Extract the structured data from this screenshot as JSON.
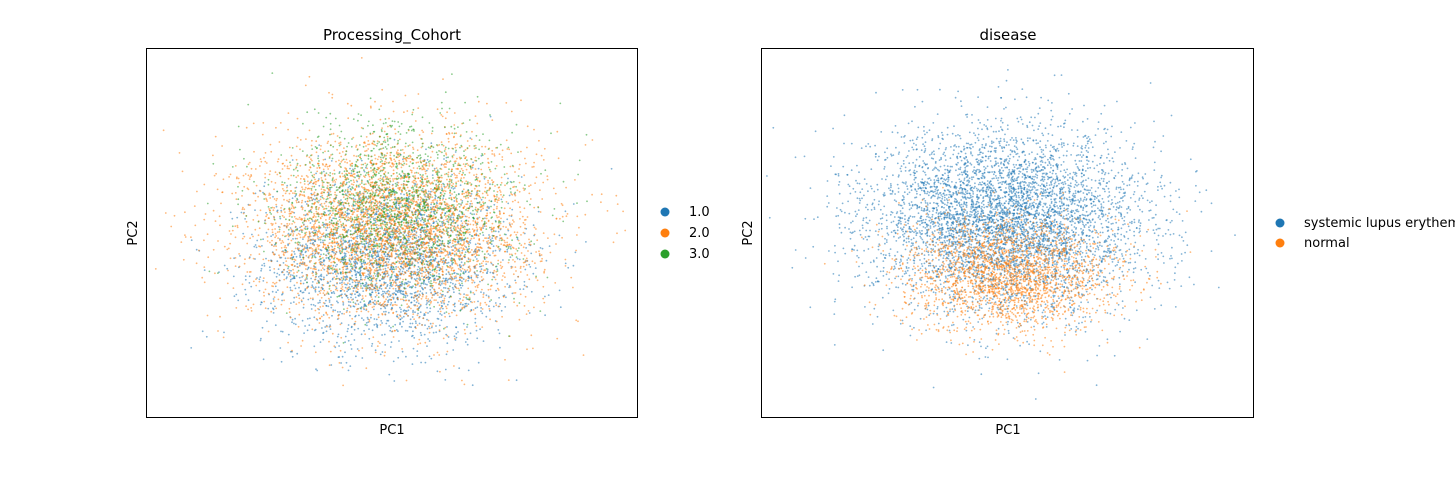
{
  "chart_data": [
    {
      "type": "scatter",
      "title": "Processing_Cohort",
      "xlabel": "PC1",
      "ylabel": "PC2",
      "xticks": [],
      "yticks": [],
      "grid": false,
      "legend": {
        "placement": "right-outside",
        "entries": [
          "1.0",
          "2.0",
          "3.0"
        ]
      },
      "series": [
        {
          "name": "1.0",
          "color": "#1f77b4",
          "center": [
            -0.05,
            -0.45
          ],
          "spread": [
            1.0,
            0.7
          ]
        },
        {
          "name": "2.0",
          "color": "#ff7f0e",
          "center": [
            0.0,
            0.1
          ],
          "spread": [
            1.15,
            0.75
          ]
        },
        {
          "name": "3.0",
          "color": "#2ca02c",
          "center": [
            0.1,
            0.45
          ],
          "spread": [
            0.95,
            0.7
          ]
        }
      ]
    },
    {
      "type": "scatter",
      "title": "disease",
      "xlabel": "PC1",
      "ylabel": "PC2",
      "xticks": [],
      "yticks": [],
      "grid": false,
      "legend": {
        "placement": "right-outside",
        "entries": [
          "systemic lupus erythematosus",
          "normal"
        ]
      },
      "series": [
        {
          "name": "systemic lupus erythematosus",
          "color": "#1f77b4",
          "center": [
            0.0,
            0.2
          ],
          "spread": [
            1.1,
            0.75
          ]
        },
        {
          "name": "normal",
          "color": "#ff7f0e",
          "center": [
            0.05,
            -0.7
          ],
          "spread": [
            0.85,
            0.45
          ]
        }
      ]
    }
  ]
}
